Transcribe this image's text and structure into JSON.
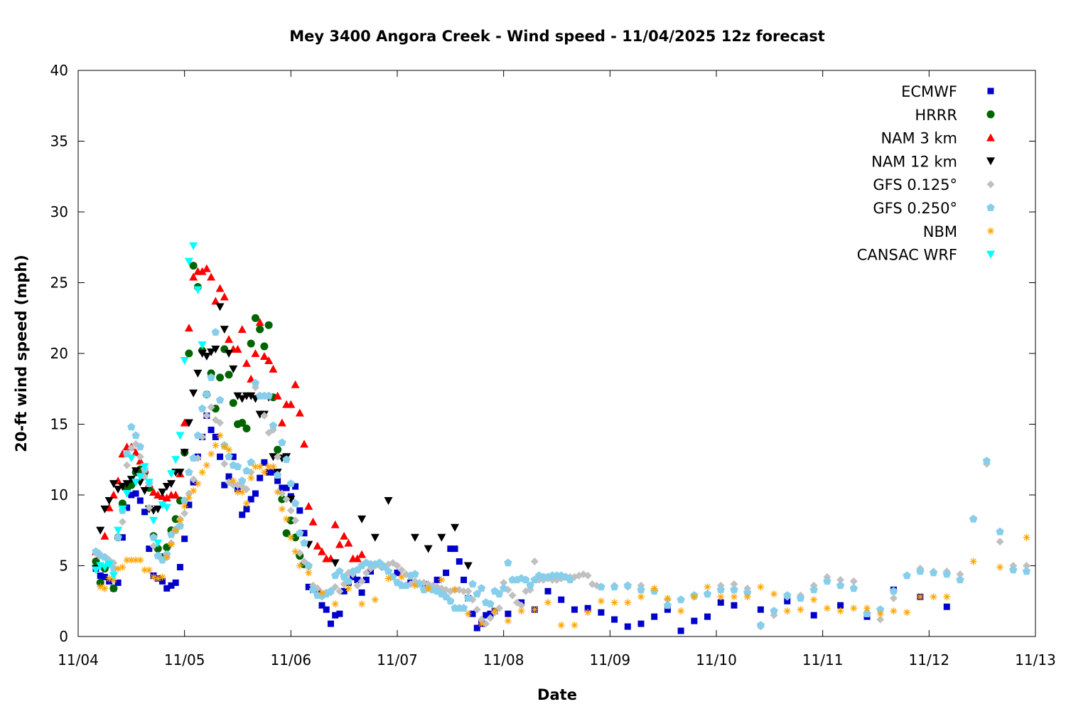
{
  "chart_data": {
    "type": "scatter",
    "title": "Mey 3400 Angora Creek - Wind speed - 11/04/2025 12z forecast",
    "xlabel": "Date",
    "ylabel": "20-ft wind speed (mph)",
    "xlim": [
      "11/04 00:00",
      "11/13 00:00"
    ],
    "ylim": [
      0,
      40
    ],
    "x_ticks": [
      "11/04",
      "11/05",
      "11/06",
      "11/07",
      "11/08",
      "11/09",
      "11/10",
      "11/11",
      "11/12",
      "11/13"
    ],
    "y_ticks": [
      "0",
      "5",
      "10",
      "15",
      "20",
      "25",
      "30",
      "35",
      "40"
    ],
    "grid": false,
    "legend_position": "top-right",
    "series": [
      {
        "name": "ECMWF",
        "marker": "square",
        "color": "#0000cc",
        "segments": [
          {
            "start": "11/04 04:00",
            "step_hours": 1,
            "values": [
              4.8,
              4.3,
              4.2,
              3.9,
              3.4,
              3.8,
              7.0,
              9.1,
              10.0,
              10.1,
              9.6,
              8.8,
              6.2,
              4.3,
              4.1,
              3.9,
              3.4,
              3.6,
              3.8,
              4.9,
              6.9,
              9.3,
              10.9,
              12.7,
              14.1,
              15.6,
              14.6,
              14.1,
              12.7,
              10.7,
              11.3,
              12.7,
              10.4,
              8.6,
              9.0,
              9.7,
              10.1,
              11.2,
              12.3,
              11.6,
              11.6,
              11.0,
              10.5,
              10.5,
              9.9,
              10.6,
              8.9,
              7.3,
              3.5,
              3.3,
              3.1,
              2.2,
              1.9,
              0.9,
              1.5,
              1.6,
              3.2,
              3.8,
              4.2,
              4.0,
              3.1,
              4.0,
              4.6
            ]
          },
          {
            "start": "11/06 21:00",
            "step_hours": 3,
            "values": [
              4.9,
              4.5,
              3.8,
              3.7,
              4.0
            ]
          },
          {
            "start": "11/07 10:00",
            "step_hours": 1,
            "values": [
              3.1,
              4.5,
              6.2,
              6.2,
              5.3,
              4.0,
              2.7,
              1.6,
              0.6,
              0.9,
              1.5,
              1.6,
              1.8
            ]
          },
          {
            "start": "11/08 01:00",
            "step_hours": 3,
            "values": [
              1.6,
              2.4,
              1.9,
              3.2,
              2.6,
              1.9,
              2.0,
              1.7,
              1.2,
              0.7,
              0.9,
              1.4,
              1.9,
              0.4,
              1.1,
              1.4,
              2.4,
              2.2
            ]
          },
          {
            "start": "11/10 10:00",
            "step_hours": 6,
            "values": [
              1.9,
              2.5,
              1.5,
              2.2,
              1.4,
              3.3,
              2.8,
              2.1
            ]
          }
        ]
      },
      {
        "name": "HRRR",
        "marker": "circle",
        "color": "#006400",
        "segments": [
          {
            "start": "11/04 04:00",
            "step_hours": 1,
            "values": [
              5.3,
              3.8,
              4.8,
              5.2,
              3.4,
              7.0,
              9.4,
              10.4,
              10.7,
              11.6,
              11.8,
              11.6,
              10.5,
              7.1,
              6.2,
              5.6,
              6.3,
              7.5,
              8.3,
              9.6,
              13.0,
              20.0,
              26.2,
              24.7,
              20.2,
              17.1,
              18.6,
              16.1,
              18.3,
              20.3,
              18.5,
              16.5,
              15.0,
              15.1,
              14.7,
              20.7,
              22.5,
              21.7,
              20.5,
              22.0,
              16.9,
              13.2,
              9.7,
              7.3,
              8.2,
              7.0,
              5.7,
              5.1
            ]
          }
        ]
      },
      {
        "name": "NAM 3 km",
        "marker": "triangle-up",
        "color": "#ff0000",
        "segments": [
          {
            "start": "11/04 04:00",
            "step_hours": 1,
            "values": [
              6.0,
              5.8,
              7.1,
              9.1,
              10.0,
              11.0,
              12.9,
              13.4,
              13.4,
              13.0,
              12.4,
              11.8,
              10.8,
              10.2,
              10.0,
              9.9,
              9.8,
              10.0,
              10.0,
              11.5,
              15.1,
              21.8,
              25.4,
              25.8,
              25.8,
              26.0,
              25.4,
              23.7,
              24.6,
              24.0,
              21.0,
              20.3,
              20.3,
              21.7,
              19.3,
              18.2,
              20.0,
              22.2,
              19.8,
              19.5,
              18.9,
              17.0,
              15.1,
              16.4,
              16.4,
              17.8,
              15.8,
              13.6,
              9.2,
              8.1,
              6.4,
              6.0,
              5.5,
              5.5,
              7.9,
              6.5,
              7.1,
              6.6,
              5.5,
              5.5,
              5.8
            ]
          }
        ]
      },
      {
        "name": "NAM 12 km",
        "marker": "triangle-down",
        "color": "#000000",
        "segments": [
          {
            "start": "11/04 04:00",
            "step_hours": 1,
            "values": [
              4.8,
              7.5,
              9.0,
              9.6,
              10.8,
              10.4,
              10.6,
              10.8,
              11.1,
              11.7,
              10.9,
              10.3,
              9.0,
              8.9,
              9.0,
              10.2,
              10.6,
              10.8,
              11.6,
              11.6,
              13.0,
              15.1,
              17.2,
              18.6,
              20.0,
              19.8,
              20.1,
              20.3,
              23.3,
              21.7,
              20.0,
              18.9,
              17.0,
              16.8,
              17.0,
              17.0,
              16.8,
              15.7,
              15.7,
              16.9,
              12.7,
              11.6,
              12.6,
              12.7,
              9.7
            ]
          },
          {
            "start": "11/06 04:00",
            "step_hours": 3,
            "values": [
              6.5,
              null,
              5.2,
              null,
              8.3,
              7.0,
              9.6,
              null,
              7.0,
              6.2,
              7.0,
              7.7,
              5.0
            ]
          }
        ]
      },
      {
        "name": "GFS 0.125°",
        "marker": "diamond",
        "color": "#c0c0c0",
        "segments": [
          {
            "start": "11/04 04:00",
            "step_hours": 1,
            "values": [
              5.9,
              5.8,
              5.6,
              5.4,
              5.2,
              7.0,
              8.1,
              12.1,
              13.3,
              13.6,
              12.7,
              11.3,
              9.1,
              6.4,
              5.7,
              5.4,
              5.6,
              6.6,
              7.6,
              8.3,
              8.7,
              10.1,
              11.1,
              12.6,
              14.1,
              15.6,
              16.2,
              15.3,
              15.1,
              12.2,
              10.9,
              10.7,
              10.7,
              10.6,
              10.4,
              11.6,
              17.6,
              17.0,
              15.6,
              14.4,
              14.6,
              12.7,
              10.1,
              9.7,
              8.9,
              8.2,
              5.9,
              5.3,
              4.9,
              3.6,
              3.4,
              2.8,
              3.1,
              3.1,
              3.5,
              3.2,
              3.7,
              4.5,
              4.4,
              3.6,
              3.9,
              4.5,
              4.8,
              5.0,
              5.0,
              5.0,
              5.1,
              5.2,
              5.0,
              4.7,
              4.4,
              3.7,
              3.9,
              3.8,
              3.8,
              3.7,
              3.6,
              3.5,
              3.4,
              3.3,
              3.2,
              3.3,
              3.3,
              3.2,
              3.2,
              2.6,
              1.9,
              1.2,
              0.9,
              1.3,
              1.7,
              2.0,
              3.8,
              3.3,
              2.9,
              2.4,
              2.2,
              3.2,
              3.3,
              5.3,
              4.0,
              4.0,
              4.1,
              4.0,
              4.0,
              4.1,
              4.2,
              4.2,
              4.2,
              4.3,
              4.4,
              4.3,
              3.7,
              3.6
            ]
          },
          {
            "start": "11/09 01:00",
            "step_hours": 3,
            "values": [
              3.6,
              3.5,
              3.6,
              3.3,
              2.6,
              2.6,
              2.8,
              3.0,
              3.6,
              3.7,
              3.4,
              0.7,
              1.5,
              2.8,
              2.9,
              3.6,
              4.2,
              4.0,
              3.9,
              1.7,
              1.2,
              2.7,
              4.3,
              4.8,
              4.6,
              4.6,
              4.4,
              8.3,
              12.2,
              6.7,
              5.0,
              5.0
            ]
          }
        ]
      },
      {
        "name": "GFS 0.250°",
        "marker": "pentagon",
        "color": "#87ceeb",
        "segments": [
          {
            "start": "11/04 04:00",
            "step_hours": 1,
            "values": [
              6.0,
              5.7,
              5.6,
              5.2,
              4.8,
              7.0,
              8.9,
              12.9,
              14.8,
              14.2,
              13.4,
              11.8,
              10.8,
              7.0,
              5.7,
              5.4,
              5.8,
              7.2,
              7.5,
              7.8,
              9.6,
              11.6,
              12.6,
              14.2,
              16.1,
              17.1,
              18.3,
              21.5,
              16.7,
              13.5,
              12.7,
              12.1,
              12.0,
              11.0,
              11.7,
              12.3,
              17.9,
              17.0,
              17.0,
              17.0,
              14.9,
              11.4,
              13.7,
              12.5,
              10.8,
              9.4,
              7.3,
              6.6,
              5.0,
              3.3,
              2.9,
              2.9,
              3.0,
              3.2,
              4.3,
              4.6,
              4.2,
              3.9,
              4.6,
              4.7,
              5.0,
              5.2,
              5.1,
              5.1,
              5.2,
              4.9,
              4.6,
              4.2,
              3.8,
              3.6,
              3.6,
              4.3,
              4.4,
              3.7,
              3.3,
              3.4,
              3.3,
              3.2,
              3.0,
              2.8,
              2.5,
              2.0,
              2.0,
              2.0,
              2.7,
              3.7,
              3.0,
              3.4,
              2.4,
              2.3,
              3.2,
              3.0,
              3.4,
              5.2,
              4.0,
              4.0,
              4.1,
              4.0,
              3.6,
              4.0,
              4.3,
              4.2,
              4.2,
              4.3,
              4.3,
              4.3,
              4.2,
              4.0
            ]
          },
          {
            "start": "11/08 22:00",
            "step_hours": 3,
            "values": [
              3.5,
              3.5,
              3.6,
              3.3,
              3.2,
              2.2,
              2.6,
              2.9,
              3.0,
              3.3,
              3.3,
              3.1,
              0.8,
              1.8,
              2.9,
              2.7,
              3.3,
              3.9,
              3.6,
              3.4,
              1.6,
              1.9,
              3.2,
              4.3,
              4.6,
              4.5,
              4.4,
              4.0,
              8.3,
              12.4,
              7.4,
              4.7,
              4.6
            ]
          }
        ]
      },
      {
        "name": "NBM",
        "marker": "asterisk",
        "color": "#ffa500",
        "segments": [
          {
            "start": "11/04 05:00",
            "step_hours": 1,
            "values": [
              3.5,
              3.4,
              4.1,
              4.0,
              4.8,
              4.9,
              5.4,
              5.4,
              5.4,
              5.4,
              4.7,
              4.7,
              4.2,
              4.1,
              4.2,
              5.6,
              6.5,
              7.5,
              8.2,
              9.2,
              9.8,
              10.3,
              10.8,
              11.6,
              12.1,
              12.9,
              13.5,
              14.2,
              13.4,
              13.2,
              11.0,
              10.2,
              10.2,
              9.4,
              11.2,
              12.0,
              12.0,
              11.6,
              12.0,
              12.0,
              10.2,
              9.0,
              8.3,
              7.0,
              6.0,
              5.0
            ]
          },
          {
            "start": "11/06 04:00",
            "step_hours": 3,
            "values": [
              4.5,
              3.1,
              2.3,
              3.4,
              2.3,
              2.6,
              4.1,
              4.2,
              3.6,
              3.4,
              4.0,
              3.3,
              1.6,
              0.9,
              1.8,
              1.1,
              1.8,
              1.9,
              2.4,
              0.8,
              0.8,
              1.7,
              2.5,
              2.4,
              2.4,
              2.8,
              3.4,
              2.7,
              1.8,
              2.8,
              3.5,
              2.8,
              2.8,
              2.8,
              3.5,
              3.0,
              1.8,
              1.9,
              2.6,
              2.0,
              1.8,
              2.0,
              2.0,
              1.6,
              1.8,
              1.7,
              2.8,
              2.8,
              2.8,
              null,
              5.3,
              null,
              4.9,
              null,
              7.0
            ]
          }
        ]
      },
      {
        "name": "CANSAC WRF",
        "marker": "triangle-down",
        "color": "#00ffff",
        "segments": [
          {
            "start": "11/04 04:00",
            "step_hours": 1,
            "values": [
              4.7,
              5.0,
              4.9,
              5.1,
              4.3,
              7.5,
              9.0,
              10.1,
              12.6,
              10.9,
              11.3,
              12.0,
              10.9,
              8.2,
              6.6,
              9.3,
              9.1,
              11.5,
              12.5,
              14.2,
              19.5,
              26.5,
              27.6,
              24.5,
              20.6
            ]
          }
        ]
      }
    ]
  }
}
